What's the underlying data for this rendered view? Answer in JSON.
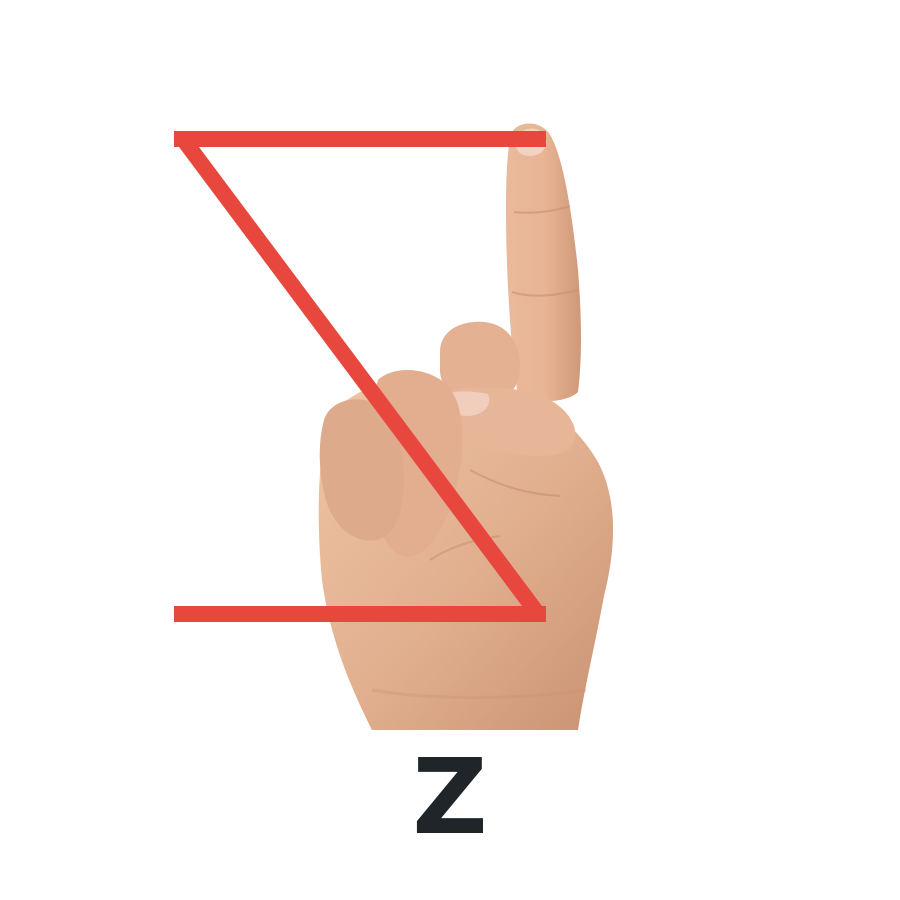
{
  "sign": {
    "letter": "Z",
    "stroke_color": "#e8473d",
    "skin_color": "#e3b393",
    "skin_shadow": "#c98e6e",
    "nail_color": "#f0cdbd",
    "text_color": "#1f2529"
  },
  "icons": [
    "hand-index-finger-icon",
    "z-motion-path-icon"
  ]
}
